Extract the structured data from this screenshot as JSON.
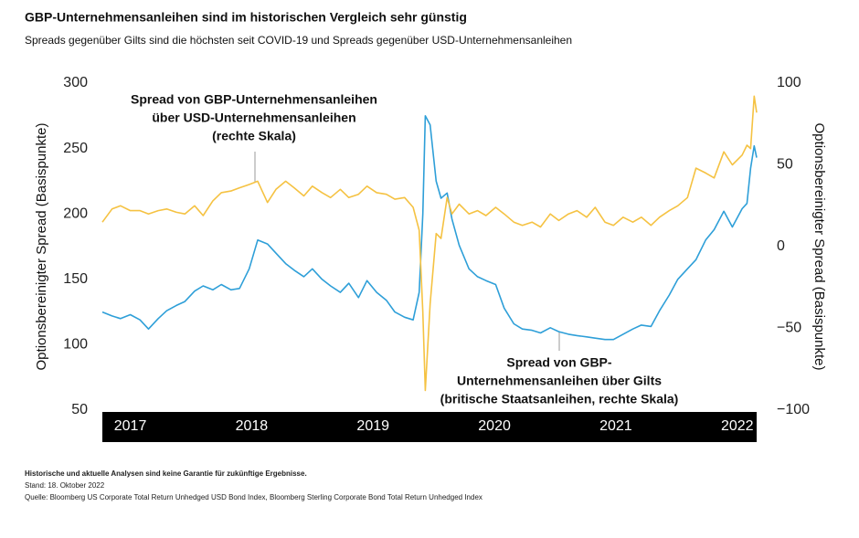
{
  "chart_data": {
    "type": "line",
    "title": "GBP-Unternehmensanleihen sind im historischen Vergleich sehr günstig",
    "subtitle": "Spreads gegenüber Gilts sind die höchsten seit COVID-19 und Spreads gegenüber USD-Unternehmensanleihen",
    "ylabel": "Optionsbereinigter Spread (Basispunkte)",
    "y2label": "Optionsbereinigter Spread (Basispunkte)",
    "annotations": [
      "Spread von GBP-Unternehmensanleihen",
      "über USD-Unternehmensanleihen",
      "(rechte Skala)",
      "Spread von GBP-",
      "Unternehmensanleihen über Gilts",
      "(britische Staatsanleihen, rechte Skala)"
    ],
    "footnotes": [
      "Historische und aktuelle Analysen sind keine Garantie für zukünftige Ergebnisse.",
      "Stand: 18. Oktober 2022",
      "Quelle: Bloomberg US Corporate Total Return Unhedged USD Bond Index, Bloomberg Sterling Corporate Bond Total Return Unhedged Index"
    ],
    "x": [
      2016.77,
      2016.85,
      2016.92,
      2017.0,
      2017.08,
      2017.15,
      2017.23,
      2017.3,
      2017.38,
      2017.45,
      2017.53,
      2017.6,
      2017.68,
      2017.75,
      2017.83,
      2017.9,
      2017.98,
      2018.05,
      2018.13,
      2018.2,
      2018.28,
      2018.35,
      2018.43,
      2018.5,
      2018.58,
      2018.65,
      2018.73,
      2018.8,
      2018.88,
      2018.95,
      2019.03,
      2019.11,
      2019.18,
      2019.26,
      2019.33,
      2019.38,
      2019.41,
      2019.43,
      2019.47,
      2019.52,
      2019.56,
      2019.61,
      2019.65,
      2019.71,
      2019.79,
      2019.86,
      2019.93,
      2020.01,
      2020.08,
      2020.16,
      2020.23,
      2020.31,
      2020.38,
      2020.46,
      2020.53,
      2020.61,
      2020.68,
      2020.76,
      2020.83,
      2020.91,
      2020.98,
      2021.06,
      2021.14,
      2021.21,
      2021.29,
      2021.36,
      2021.44,
      2021.51,
      2021.59,
      2021.66,
      2021.74,
      2021.81,
      2021.89,
      2021.96,
      2022.04,
      2022.08,
      2022.11,
      2022.14,
      2022.16
    ],
    "series": [
      {
        "name": "Spread von GBP-Unternehmensanleihen über Gilts",
        "color": "#2e9fd8",
        "axis": "y",
        "values": [
          125,
          122,
          120,
          123,
          119,
          112,
          120,
          126,
          130,
          133,
          141,
          145,
          142,
          146,
          142,
          143,
          158,
          180,
          177,
          170,
          162,
          157,
          152,
          158,
          150,
          145,
          140,
          147,
          136,
          149,
          140,
          134,
          125,
          121,
          119,
          140,
          200,
          275,
          268,
          225,
          212,
          216,
          196,
          176,
          158,
          152,
          149,
          146,
          128,
          116,
          112,
          111,
          109,
          113,
          110,
          108,
          107,
          106,
          105,
          104,
          104,
          108,
          112,
          115,
          114,
          126,
          138,
          150,
          158,
          165,
          180,
          188,
          202,
          190,
          204,
          208,
          235,
          252,
          243
        ]
      },
      {
        "name": "Spread von GBP-Unternehmensanleihen über USD-Unternehmensanleihen",
        "color": "#f5c242",
        "axis": "y2",
        "values": [
          15,
          23,
          25,
          22,
          22,
          20,
          22,
          23,
          21,
          20,
          25,
          19,
          28,
          33,
          34,
          36,
          38,
          40,
          27,
          35,
          40,
          36,
          31,
          37,
          33,
          30,
          35,
          30,
          32,
          37,
          33,
          32,
          29,
          30,
          24,
          10,
          -40,
          -88,
          -35,
          8,
          5,
          30,
          20,
          26,
          20,
          22,
          19,
          24,
          20,
          15,
          13,
          15,
          12,
          20,
          16,
          20,
          22,
          18,
          24,
          15,
          13,
          18,
          15,
          18,
          13,
          18,
          22,
          25,
          30,
          48,
          45,
          42,
          58,
          50,
          56,
          62,
          60,
          92,
          82
        ]
      }
    ],
    "xlim": [
      2016.77,
      2022.16
    ],
    "xticks": [
      2017,
      2018,
      2019,
      2020,
      2021,
      2022
    ],
    "ylim": [
      50,
      300
    ],
    "yticks": [
      50,
      100,
      150,
      200,
      250,
      300
    ],
    "y2lim": [
      -100,
      100
    ],
    "y2ticks": [
      {
        "value": -100,
        "label": "−100"
      },
      {
        "value": -50,
        "label": "−50"
      },
      0,
      50,
      100
    ],
    "grid": false
  }
}
